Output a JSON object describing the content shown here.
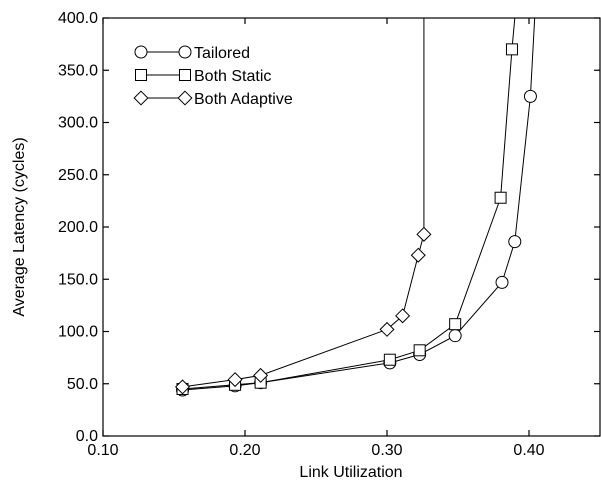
{
  "chart_data": {
    "type": "line",
    "title": "",
    "xlabel": "Link Utilization",
    "ylabel": "Average Latency (cycles)",
    "xlim": [
      0.1,
      0.45
    ],
    "ylim": [
      0,
      400
    ],
    "x_ticks": [
      0.1,
      0.2,
      0.3,
      0.4
    ],
    "x_tick_labels": [
      "0.10",
      "0.20",
      "0.30",
      "0.40"
    ],
    "y_ticks": [
      0,
      50,
      100,
      150,
      200,
      250,
      300,
      350,
      400
    ],
    "y_tick_labels": [
      "0.0",
      "50.0",
      "100.0",
      "150.0",
      "200.0",
      "250.0",
      "300.0",
      "350.0",
      "400.0"
    ],
    "grid": false,
    "legend_position": "top-left",
    "series": [
      {
        "name": "Tailored",
        "marker": "circle",
        "x": [
          0.156,
          0.193,
          0.211,
          0.302,
          0.323,
          0.348,
          0.381,
          0.39,
          0.401,
          0.404
        ],
        "y": [
          44,
          48,
          51,
          70,
          78,
          96,
          147,
          186,
          325,
          400
        ]
      },
      {
        "name": "Both Static",
        "marker": "square",
        "x": [
          0.156,
          0.193,
          0.211,
          0.302,
          0.323,
          0.348,
          0.38,
          0.388,
          0.39
        ],
        "y": [
          45,
          49,
          51,
          73,
          82,
          107,
          228,
          370,
          400
        ]
      },
      {
        "name": "Both Adaptive",
        "marker": "diamond",
        "x": [
          0.156,
          0.193,
          0.211,
          0.3,
          0.311,
          0.322,
          0.326,
          0.326
        ],
        "y": [
          47,
          54,
          58,
          102,
          115,
          173,
          193,
          400
        ]
      }
    ]
  }
}
